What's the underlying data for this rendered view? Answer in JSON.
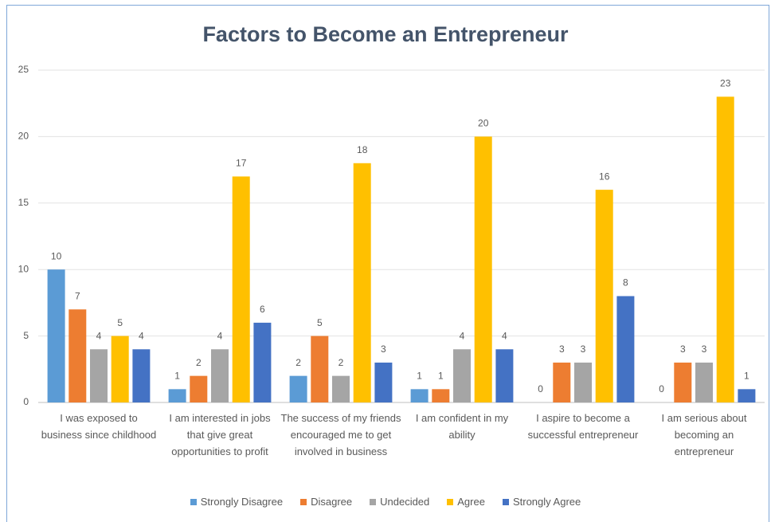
{
  "chart_data": {
    "type": "bar",
    "title": "Factors to Become an Entrepreneur",
    "categories": [
      "I was exposed to business since childhood",
      "I am interested in jobs that give great opportunities to profit",
      "The success of my friends encouraged me to get involved in business",
      "I am confident in my ability",
      "I aspire to become a successful entrepreneur",
      "I am serious about becoming an entrepreneur"
    ],
    "series": [
      {
        "name": "Strongly Disagree",
        "color": "#5b9bd5",
        "values": [
          10,
          1,
          2,
          1,
          0,
          0
        ]
      },
      {
        "name": "Disagree",
        "color": "#ed7d31",
        "values": [
          7,
          2,
          5,
          1,
          3,
          3
        ]
      },
      {
        "name": "Undecided",
        "color": "#a5a5a5",
        "values": [
          4,
          4,
          2,
          4,
          3,
          3
        ]
      },
      {
        "name": "Agree",
        "color": "#ffc000",
        "values": [
          5,
          17,
          18,
          20,
          16,
          23
        ]
      },
      {
        "name": "Strongly Agree",
        "color": "#4472c4",
        "values": [
          4,
          6,
          3,
          4,
          8,
          1
        ]
      }
    ],
    "ylim": [
      0,
      25
    ],
    "yticks": [
      0,
      5,
      10,
      15,
      20,
      25
    ],
    "grid": true,
    "legend": "bottom"
  }
}
